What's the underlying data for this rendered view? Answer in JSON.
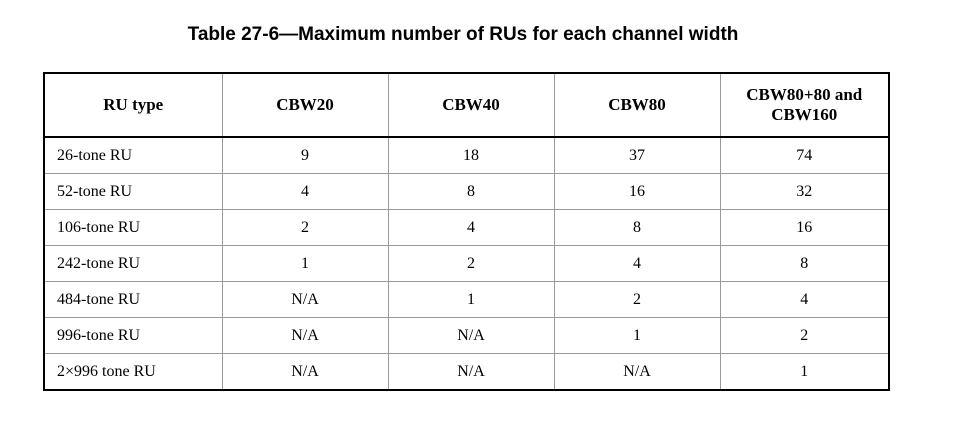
{
  "caption": "Table 27-6—Maximum number of RUs for each channel width",
  "table": {
    "headers": [
      "RU type",
      "CBW20",
      "CBW40",
      "CBW80",
      "CBW80+80 and CBW160"
    ],
    "rows": [
      [
        "26-tone RU",
        "9",
        "18",
        "37",
        "74"
      ],
      [
        "52-tone RU",
        "4",
        "8",
        "16",
        "32"
      ],
      [
        "106-tone RU",
        "2",
        "4",
        "8",
        "16"
      ],
      [
        "242-tone RU",
        "1",
        "2",
        "4",
        "8"
      ],
      [
        "484-tone RU",
        "N/A",
        "1",
        "2",
        "4"
      ],
      [
        "996-tone RU",
        "N/A",
        "N/A",
        "1",
        "2"
      ],
      [
        "2×996 tone RU",
        "N/A",
        "N/A",
        "N/A",
        "1"
      ]
    ]
  }
}
